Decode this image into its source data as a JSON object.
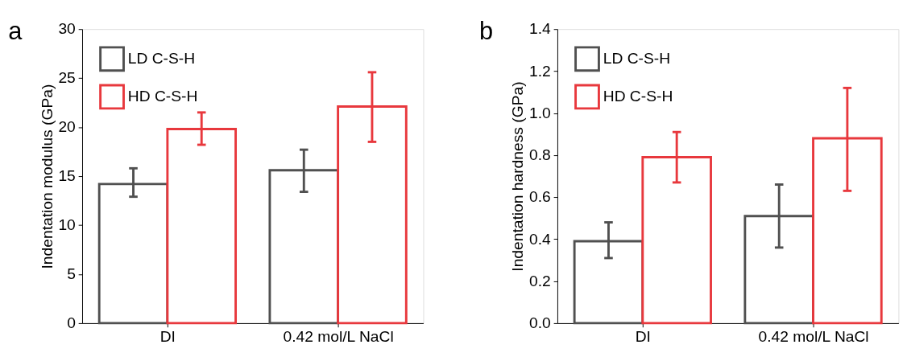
{
  "chart_data": [
    {
      "type": "bar",
      "title": "a",
      "ylabel": "Indentation modulus (GPa)",
      "categories": [
        "DI",
        "0.42 mol/L NaCl"
      ],
      "ylim": [
        0,
        30
      ],
      "yticks": [
        0,
        5,
        10,
        15,
        20,
        25,
        30
      ],
      "grid": false,
      "legend": "top left",
      "series": [
        {
          "name": "LD C-S-H",
          "color": "#505050",
          "values": [
            14.2,
            15.6
          ],
          "errors": [
            [
              12.9,
              15.8
            ],
            [
              13.4,
              17.7
            ]
          ]
        },
        {
          "name": "HD C-S-H",
          "color": "#e8383d",
          "values": [
            19.8,
            22.1
          ],
          "errors": [
            [
              18.2,
              21.5
            ],
            [
              18.5,
              25.6
            ]
          ]
        }
      ]
    },
    {
      "type": "bar",
      "title": "b",
      "ylabel": "Indentation hardness (GPa)",
      "categories": [
        "DI",
        "0.42 mol/L NaCl"
      ],
      "ylim": [
        0,
        1.4
      ],
      "yticks": [
        {
          "value": 0,
          "label": "0.0"
        },
        {
          "value": 0.2,
          "label": "0.2"
        },
        {
          "value": 0.4,
          "label": "0.4"
        },
        {
          "value": 0.6,
          "label": "0.6"
        },
        {
          "value": 0.8,
          "label": "0.8"
        },
        {
          "value": 1.0,
          "label": "1.0"
        },
        {
          "value": 1.2,
          "label": "1.2"
        },
        {
          "value": 1.4,
          "label": "1.4"
        }
      ],
      "grid": false,
      "legend": "top left",
      "series": [
        {
          "name": "LD C-S-H",
          "color": "#505050",
          "values": [
            0.39,
            0.51
          ],
          "errors": [
            [
              0.31,
              0.48
            ],
            [
              0.36,
              0.66
            ]
          ]
        },
        {
          "name": "HD C-S-H",
          "color": "#e8383d",
          "values": [
            0.79,
            0.88
          ],
          "errors": [
            [
              0.67,
              0.91
            ],
            [
              0.63,
              1.12
            ]
          ]
        }
      ]
    }
  ]
}
